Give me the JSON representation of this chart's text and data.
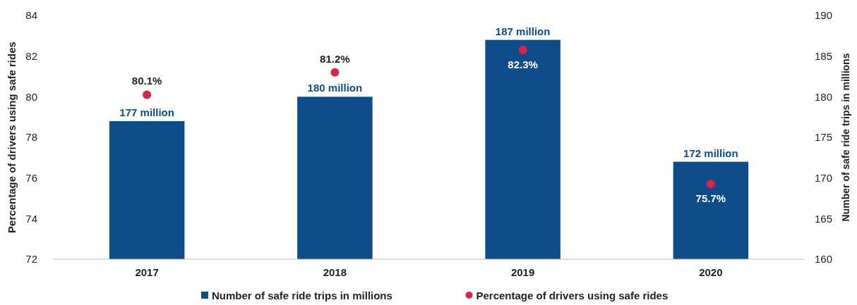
{
  "chart_data": {
    "type": "bar",
    "categories": [
      "2017",
      "2018",
      "2019",
      "2020"
    ],
    "series": [
      {
        "name": "Number of safe ride trips in millions",
        "axis": "y2",
        "color": "#0f4c8a",
        "values": [
          177,
          180,
          187,
          172
        ],
        "value_labels": [
          "177 million",
          "180 million",
          "187 million",
          "172 million"
        ]
      },
      {
        "name": "Percentage of drivers using safe rides",
        "type": "scatter",
        "color": "#d6244a",
        "values": [
          80.1,
          81.2,
          82.3,
          75.7
        ],
        "value_labels": [
          "80.1%",
          "81.2%",
          "82.3%",
          "75.7%"
        ],
        "marker": "circle"
      }
    ],
    "ylabel": "Percentage of drivers using safe rides",
    "y2label": "Number of safe ride trips in millions",
    "ylim": [
      72,
      84
    ],
    "yticks": [
      72,
      74,
      76,
      78,
      80,
      82,
      84
    ],
    "y2lim": [
      160,
      190
    ],
    "y2ticks": [
      160,
      165,
      170,
      175,
      180,
      185,
      190
    ],
    "legend": "bottom",
    "grid": false
  }
}
